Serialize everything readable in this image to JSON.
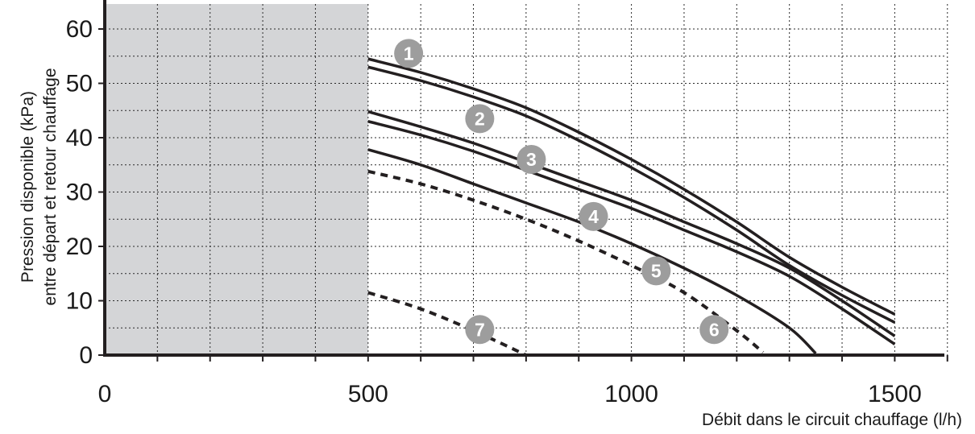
{
  "chart_data": {
    "type": "line",
    "xlabel": "Débit dans le circuit chauffage (l/h)",
    "ylabel_line1": "Pression disponible (kPa)",
    "ylabel_line2": "entre départ et retour chauffage",
    "xlim": [
      0,
      1600
    ],
    "ylim": [
      0,
      63
    ],
    "x_ticks": [
      0,
      500,
      1000,
      1500
    ],
    "y_ticks": [
      0,
      10,
      20,
      30,
      40,
      50,
      60
    ],
    "x_grid": [
      100,
      200,
      300,
      400,
      500,
      600,
      700,
      800,
      900,
      1000,
      1100,
      1200,
      1300,
      1400,
      1500,
      1600
    ],
    "y_grid": [
      5,
      10,
      15,
      20,
      25,
      30,
      35,
      40,
      45,
      50,
      55,
      60
    ],
    "grid": true,
    "shaded_region": {
      "x": [
        0,
        500
      ],
      "color": "#d4d5d7"
    },
    "series": [
      {
        "name": "1",
        "style": "solid",
        "x": [
          500,
          600,
          700,
          800,
          900,
          1000,
          1100,
          1200,
          1300,
          1400,
          1500
        ],
        "y": [
          54.5,
          52,
          49,
          45.5,
          41,
          36,
          30.5,
          24.5,
          18,
          12.5,
          7.5
        ],
        "label_at": [
          577,
          55.5
        ]
      },
      {
        "name": "2",
        "style": "solid",
        "x": [
          500,
          600,
          700,
          800,
          900,
          1000,
          1100,
          1200,
          1300,
          1400,
          1500
        ],
        "y": [
          53,
          50.5,
          47.5,
          44,
          39.5,
          34.5,
          29,
          23,
          16.5,
          11,
          6
        ],
        "label_at": [
          712,
          43.5
        ]
      },
      {
        "name": "3",
        "style": "solid",
        "x": [
          500,
          600,
          700,
          800,
          900,
          1000,
          1100,
          1200,
          1300,
          1400,
          1500
        ],
        "y": [
          44.8,
          42,
          39,
          35.5,
          32,
          28.5,
          24.5,
          20.5,
          16,
          10,
          3.5
        ],
        "label_at": [
          810,
          36
        ]
      },
      {
        "name": "4",
        "style": "solid",
        "x": [
          500,
          600,
          700,
          800,
          900,
          1000,
          1100,
          1200,
          1300,
          1400,
          1500
        ],
        "y": [
          43,
          40.5,
          37.5,
          34,
          30.5,
          27,
          23,
          19,
          14.5,
          8.5,
          2
        ],
        "label_at": [
          928,
          25.5
        ]
      },
      {
        "name": "5",
        "style": "solid",
        "x": [
          500,
          600,
          700,
          800,
          900,
          1000,
          1100,
          1200,
          1300,
          1350
        ],
        "y": [
          37.8,
          35,
          31.5,
          28,
          24.5,
          20.5,
          16,
          11,
          5,
          0.3
        ],
        "label_at": [
          1047,
          15.5
        ]
      },
      {
        "name": "6",
        "style": "dashed",
        "x": [
          500,
          600,
          700,
          800,
          900,
          1000,
          1100,
          1200,
          1250
        ],
        "y": [
          33.8,
          31.5,
          28.5,
          25,
          21,
          16.5,
          11.5,
          4.5,
          0.5
        ],
        "label_at": [
          1157,
          4.7
        ]
      },
      {
        "name": "7",
        "style": "dashed",
        "x": [
          500,
          600,
          700,
          800
        ],
        "y": [
          11.5,
          8.5,
          4.5,
          0
        ],
        "label_at": [
          712,
          4.7
        ]
      }
    ],
    "colors": {
      "line": "#231f20",
      "badge": "#9d9d9d",
      "axis": "#231f20"
    }
  }
}
